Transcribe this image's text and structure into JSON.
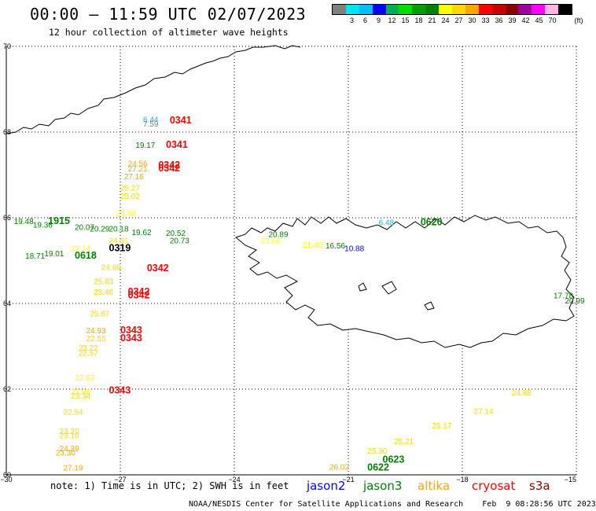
{
  "header": {
    "title": "00:00 – 11:59 UTC 02/07/2023",
    "subtitle": "12 hour collection of altimeter wave heights"
  },
  "scale": {
    "unit_label": "(ft)",
    "bins": [
      {
        "label": "",
        "color": "#808080"
      },
      {
        "label": "3",
        "color": "#00e5ee"
      },
      {
        "label": "6",
        "color": "#00bfff"
      },
      {
        "label": "9",
        "color": "#0000ff"
      },
      {
        "label": "12",
        "color": "#00b050"
      },
      {
        "label": "15",
        "color": "#00e000"
      },
      {
        "label": "18",
        "color": "#00a000"
      },
      {
        "label": "21",
        "color": "#008000"
      },
      {
        "label": "24",
        "color": "#ffff00"
      },
      {
        "label": "27",
        "color": "#ffd700"
      },
      {
        "label": "30",
        "color": "#ffa500"
      },
      {
        "label": "33",
        "color": "#ff0000"
      },
      {
        "label": "36",
        "color": "#cc0000"
      },
      {
        "label": "39",
        "color": "#8b0000"
      },
      {
        "label": "42",
        "color": "#a000a0"
      },
      {
        "label": "45",
        "color": "#ff00ff"
      },
      {
        "label": "70",
        "color": "#ffb6e6"
      },
      {
        "label": "",
        "color": "#000000"
      }
    ]
  },
  "map": {
    "lat_labels": [
      "70",
      "68",
      "66",
      "64",
      "62",
      "60"
    ],
    "lon_labels": [
      "−30",
      "−27",
      "−24",
      "−21",
      "−18",
      "−15"
    ],
    "observations": [
      {
        "text": "6.44",
        "lon": -26.4,
        "lat": 68.23,
        "color": "#1fb2d0",
        "kind": "swh"
      },
      {
        "text": "7.59",
        "lon": -26.4,
        "lat": 68.13,
        "color": "#808080",
        "kind": "swh"
      },
      {
        "text": "0341",
        "lon": -25.7,
        "lat": 68.2,
        "color": "#ff0000",
        "kind": "pass"
      },
      {
        "text": "19.17",
        "lon": -26.6,
        "lat": 67.63,
        "color": "#008000",
        "kind": "swh"
      },
      {
        "text": "0341",
        "lon": -25.8,
        "lat": 67.63,
        "color": "#ff0000",
        "kind": "pass"
      },
      {
        "text": "24.56",
        "lon": -26.8,
        "lat": 67.2,
        "color": "#ffa500",
        "kind": "swh"
      },
      {
        "text": "27.21",
        "lon": -26.8,
        "lat": 67.08,
        "color": "#ffa500",
        "kind": "swh"
      },
      {
        "text": "0342",
        "lon": -26.0,
        "lat": 67.16,
        "color": "#ff0000",
        "kind": "pass"
      },
      {
        "text": "0342",
        "lon": -26.0,
        "lat": 67.08,
        "color": "#ff0000",
        "kind": "pass"
      },
      {
        "text": "27.16",
        "lon": -26.9,
        "lat": 66.9,
        "color": "#ffa500",
        "kind": "swh"
      },
      {
        "text": "25.27",
        "lon": -27.0,
        "lat": 66.63,
        "color": "#ffd700",
        "kind": "swh"
      },
      {
        "text": "25.02",
        "lon": -27.0,
        "lat": 66.44,
        "color": "#ffd700",
        "kind": "swh"
      },
      {
        "text": "21.88",
        "lon": -27.1,
        "lat": 66.05,
        "color": "#ffff00",
        "kind": "swh"
      },
      {
        "text": "19.48",
        "lon": -29.8,
        "lat": 65.85,
        "color": "#008000",
        "kind": "swh"
      },
      {
        "text": "1915",
        "lon": -28.9,
        "lat": 65.85,
        "color": "#008000",
        "kind": "pass"
      },
      {
        "text": "19.36",
        "lon": -29.3,
        "lat": 65.77,
        "color": "#008000",
        "kind": "swh"
      },
      {
        "text": "20.07",
        "lon": -28.2,
        "lat": 65.72,
        "color": "#008000",
        "kind": "swh"
      },
      {
        "text": "20.29",
        "lon": -27.8,
        "lat": 65.68,
        "color": "#008000",
        "kind": "swh"
      },
      {
        "text": "20.18",
        "lon": -27.3,
        "lat": 65.68,
        "color": "#008000",
        "kind": "swh"
      },
      {
        "text": "19.62",
        "lon": -26.7,
        "lat": 65.6,
        "color": "#008000",
        "kind": "swh"
      },
      {
        "text": "20.52",
        "lon": -25.8,
        "lat": 65.58,
        "color": "#008000",
        "kind": "swh"
      },
      {
        "text": "24.81",
        "lon": -27.3,
        "lat": 65.4,
        "color": "#ffd700",
        "kind": "swh"
      },
      {
        "text": "20.73",
        "lon": -25.7,
        "lat": 65.4,
        "color": "#008000",
        "kind": "swh"
      },
      {
        "text": "20.89",
        "lon": -23.1,
        "lat": 65.55,
        "color": "#008000",
        "kind": "swh"
      },
      {
        "text": "21.68",
        "lon": -23.3,
        "lat": 65.4,
        "color": "#ffff00",
        "kind": "swh"
      },
      {
        "text": "21.40",
        "lon": -22.2,
        "lat": 65.3,
        "color": "#ffff00",
        "kind": "swh"
      },
      {
        "text": "16.56",
        "lon": -21.6,
        "lat": 65.28,
        "color": "#008000",
        "kind": "swh"
      },
      {
        "text": "10.88",
        "lon": -21.1,
        "lat": 65.22,
        "color": "#0000ff",
        "kind": "swh"
      },
      {
        "text": "0319",
        "lon": -27.3,
        "lat": 65.22,
        "color": "#000000",
        "kind": "pass"
      },
      {
        "text": "22.14",
        "lon": -28.3,
        "lat": 65.22,
        "color": "#ffff00",
        "kind": "swh"
      },
      {
        "text": "18.71",
        "lon": -29.5,
        "lat": 65.05,
        "color": "#008000",
        "kind": "swh"
      },
      {
        "text": "19.01",
        "lon": -29.0,
        "lat": 65.1,
        "color": "#008000",
        "kind": "swh"
      },
      {
        "text": "0618",
        "lon": -28.2,
        "lat": 65.05,
        "color": "#008000",
        "kind": "pass"
      },
      {
        "text": "6.48",
        "lon": -20.2,
        "lat": 65.83,
        "color": "#1fb2d0",
        "kind": "swh"
      },
      {
        "text": "0620",
        "lon": -19.1,
        "lat": 65.83,
        "color": "#008000",
        "kind": "pass"
      },
      {
        "text": "24.69",
        "lon": -27.5,
        "lat": 64.78,
        "color": "#ffd700",
        "kind": "swh"
      },
      {
        "text": "0342",
        "lon": -26.3,
        "lat": 64.75,
        "color": "#ff0000",
        "kind": "pass"
      },
      {
        "text": "25.83",
        "lon": -27.7,
        "lat": 64.45,
        "color": "#ffd700",
        "kind": "swh"
      },
      {
        "text": "25.46",
        "lon": -27.7,
        "lat": 64.2,
        "color": "#ffd700",
        "kind": "swh"
      },
      {
        "text": "0342",
        "lon": -26.8,
        "lat": 64.2,
        "color": "#ff0000",
        "kind": "pass"
      },
      {
        "text": "0342",
        "lon": -26.8,
        "lat": 64.12,
        "color": "#ff0000",
        "kind": "pass"
      },
      {
        "text": "25.67",
        "lon": -27.8,
        "lat": 63.7,
        "color": "#ffd700",
        "kind": "swh"
      },
      {
        "text": "24.93",
        "lon": -27.9,
        "lat": 63.3,
        "color": "#ffa500",
        "kind": "swh"
      },
      {
        "text": "0343",
        "lon": -27.0,
        "lat": 63.3,
        "color": "#ff0000",
        "kind": "pass"
      },
      {
        "text": "0343",
        "lon": -27.0,
        "lat": 63.12,
        "color": "#ff0000",
        "kind": "pass"
      },
      {
        "text": "22.55",
        "lon": -27.9,
        "lat": 63.12,
        "color": "#ffd700",
        "kind": "swh"
      },
      {
        "text": "23.22",
        "lon": -28.1,
        "lat": 62.9,
        "color": "#ffd700",
        "kind": "swh"
      },
      {
        "text": "22.57",
        "lon": -28.1,
        "lat": 62.78,
        "color": "#ffd700",
        "kind": "swh"
      },
      {
        "text": "22.63",
        "lon": -28.2,
        "lat": 62.2,
        "color": "#ffff00",
        "kind": "swh"
      },
      {
        "text": "0343",
        "lon": -27.3,
        "lat": 61.9,
        "color": "#ff0000",
        "kind": "pass"
      },
      {
        "text": "22.98",
        "lon": -28.3,
        "lat": 61.88,
        "color": "#ffff00",
        "kind": "swh"
      },
      {
        "text": "23.34",
        "lon": -28.3,
        "lat": 61.78,
        "color": "#ffd700",
        "kind": "swh"
      },
      {
        "text": "22.54",
        "lon": -28.5,
        "lat": 61.4,
        "color": "#ffd700",
        "kind": "swh"
      },
      {
        "text": "23.20",
        "lon": -28.6,
        "lat": 60.95,
        "color": "#ffd700",
        "kind": "swh"
      },
      {
        "text": "23.10",
        "lon": -28.6,
        "lat": 60.85,
        "color": "#ffd700",
        "kind": "swh"
      },
      {
        "text": "24.39",
        "lon": -28.6,
        "lat": 60.55,
        "color": "#ffa500",
        "kind": "swh"
      },
      {
        "text": "23.30",
        "lon": -28.7,
        "lat": 60.45,
        "color": "#ffa500",
        "kind": "swh"
      },
      {
        "text": "27.19",
        "lon": -28.5,
        "lat": 60.1,
        "color": "#ffa500",
        "kind": "swh"
      },
      {
        "text": "26.02",
        "lon": -21.5,
        "lat": 60.12,
        "color": "#ffa500",
        "kind": "swh"
      },
      {
        "text": "0622",
        "lon": -20.5,
        "lat": 60.1,
        "color": "#008000",
        "kind": "pass"
      },
      {
        "text": "0623",
        "lon": -20.1,
        "lat": 60.28,
        "color": "#008000",
        "kind": "pass"
      },
      {
        "text": "25.30",
        "lon": -20.5,
        "lat": 60.5,
        "color": "#ffd700",
        "kind": "swh"
      },
      {
        "text": "25.21",
        "lon": -19.8,
        "lat": 60.72,
        "color": "#ffd700",
        "kind": "swh"
      },
      {
        "text": "25.17",
        "lon": -18.8,
        "lat": 61.08,
        "color": "#ffd700",
        "kind": "swh"
      },
      {
        "text": "27.14",
        "lon": -17.7,
        "lat": 61.42,
        "color": "#ffd700",
        "kind": "swh"
      },
      {
        "text": "24.88",
        "lon": -16.7,
        "lat": 61.85,
        "color": "#ffd700",
        "kind": "swh"
      },
      {
        "text": "17.78",
        "lon": -15.6,
        "lat": 64.12,
        "color": "#008000",
        "kind": "swh"
      },
      {
        "text": "20.99",
        "lon": -15.3,
        "lat": 64.0,
        "color": "#008000",
        "kind": "swh"
      }
    ]
  },
  "footer": {
    "note": "note: 1) Time is in UTC; 2) SWH is in feet",
    "missions": [
      {
        "label": "jason2",
        "color": "#0000ff"
      },
      {
        "label": "jason3",
        "color": "#008000"
      },
      {
        "label": "altika",
        "color": "#ffa500"
      },
      {
        "label": "cryosat",
        "color": "#ff0000"
      },
      {
        "label": "s3a",
        "color": "#8b0000"
      }
    ],
    "credit": "NOAA/NESDIS Center for Satellite Applications and Research    Feb  9 08:28:56 UTC 2023"
  }
}
